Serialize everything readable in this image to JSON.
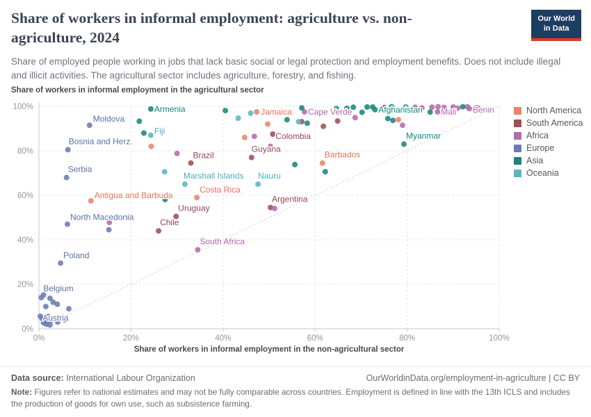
{
  "header": {
    "title": "Share of workers in informal employment: agriculture vs. non-agriculture, 2024",
    "subtitle": "Share of employed people working in jobs that lack basic social or legal protection and employment benefits. Does not include illegal and illicit activities. The agricultural sector includes agriculture, forestry, and fishing.",
    "logo_line1": "Our World",
    "logo_line2": "in Data",
    "logo_bg": "#1d3d63",
    "logo_accent": "#dc3d22"
  },
  "chart_data": {
    "type": "scatter",
    "ylabel": "Share of workers in informal employment in the agricultural sector",
    "xlabel": "Share of workers in informal employment in the non-agricultural sector",
    "xlim": [
      0,
      100
    ],
    "ylim": [
      0,
      100
    ],
    "xticks": [
      0,
      20,
      40,
      60,
      80,
      100
    ],
    "yticks": [
      0,
      20,
      40,
      60,
      80,
      100
    ],
    "tick_suffix": "%",
    "grid": true,
    "diagonal_reference_line": true,
    "legend_position": "right",
    "series": [
      {
        "name": "North America",
        "color": "#EE8268",
        "label_color": "#E8705C",
        "points": [
          {
            "x": 47.3,
            "y": 97.5,
            "l": "Jamaica",
            "dx": 6,
            "dy": 4
          },
          {
            "x": 49.7,
            "y": 92
          },
          {
            "x": 44.7,
            "y": 86
          },
          {
            "x": 24.4,
            "y": 82
          },
          {
            "x": 78.1,
            "y": 94
          },
          {
            "x": 61.6,
            "y": 74.5,
            "l": "Barbados",
            "dx": 3,
            "dy": -8
          },
          {
            "x": 34.3,
            "y": 59,
            "l": "Costa Rica",
            "dx": 4,
            "dy": -7
          },
          {
            "x": 11.3,
            "y": 57.5,
            "l": "Antigua and Barbuda",
            "dx": 5,
            "dy": -4
          }
        ]
      },
      {
        "name": "South America",
        "color": "#9D4E56",
        "label_color": "#96464F",
        "points": [
          {
            "x": 50.8,
            "y": 87.5,
            "l": "Colombia",
            "dx": 4,
            "dy": 7
          },
          {
            "x": 46.2,
            "y": 77,
            "l": "Guyana",
            "dx": 0,
            "dy": -8
          },
          {
            "x": 33,
            "y": 74.5,
            "l": "Brazil",
            "dx": 3,
            "dy": -7
          },
          {
            "x": 29.8,
            "y": 50.5,
            "l": "Uruguay",
            "dx": 3,
            "dy": -8
          },
          {
            "x": 26,
            "y": 44,
            "l": "Chile",
            "dx": 2,
            "dy": -8
          },
          {
            "x": 50.3,
            "y": 54.5,
            "l": "Argentina",
            "dx": 2,
            "dy": -8
          },
          {
            "x": 57.1,
            "y": 93.1
          },
          {
            "x": 61.8,
            "y": 91
          },
          {
            "x": 64.9,
            "y": 93.4
          },
          {
            "x": 75.1,
            "y": 99.5
          }
        ]
      },
      {
        "name": "Africa",
        "color": "#B36BAD",
        "label_color": "#B066AB",
        "points": [
          {
            "x": 57.7,
            "y": 97.5,
            "l": "Cape Verde",
            "dx": 5,
            "dy": 4
          },
          {
            "x": 86.6,
            "y": 97.5,
            "l": "Mali",
            "dx": 5,
            "dy": 4
          },
          {
            "x": 93.5,
            "y": 99,
            "l": "Benin",
            "dx": 5,
            "dy": 6
          },
          {
            "x": 34.5,
            "y": 35.5,
            "l": "South Africa",
            "dx": 3,
            "dy": -8
          },
          {
            "x": 30,
            "y": 78.8
          },
          {
            "x": 46.8,
            "y": 86.5
          },
          {
            "x": 50.3,
            "y": 82
          },
          {
            "x": 68.7,
            "y": 94.9
          },
          {
            "x": 79,
            "y": 91.5
          },
          {
            "x": 51.2,
            "y": 54.1
          },
          {
            "x": 15.3,
            "y": 47.8
          },
          {
            "x": 81.7,
            "y": 99.6
          },
          {
            "x": 83.2,
            "y": 99.3
          },
          {
            "x": 85.4,
            "y": 99.6
          },
          {
            "x": 86.7,
            "y": 99.8
          },
          {
            "x": 88,
            "y": 99.5
          },
          {
            "x": 90,
            "y": 99.7
          },
          {
            "x": 91,
            "y": 99.2
          },
          {
            "x": 93.1,
            "y": 99.8
          },
          {
            "x": 94.9,
            "y": 99.4
          },
          {
            "x": 95.4,
            "y": 99.2
          }
        ]
      },
      {
        "name": "Europe",
        "color": "#6B7CB4",
        "label_color": "#5872A8",
        "points": [
          {
            "x": 11,
            "y": 91.5,
            "l": "Moldova",
            "dx": 5,
            "dy": -5
          },
          {
            "x": 6.3,
            "y": 80.5,
            "l": "Bosnia and Herz.",
            "dx": 1,
            "dy": -8
          },
          {
            "x": 6,
            "y": 68,
            "l": "Serbia",
            "dx": 2,
            "dy": -8
          },
          {
            "x": 6.2,
            "y": 47,
            "l": "North Macedonia",
            "dx": 4,
            "dy": -6
          },
          {
            "x": 4.7,
            "y": 29.5,
            "l": "Poland",
            "dx": 4,
            "dy": -7
          },
          {
            "x": 0.5,
            "y": 14,
            "l": "Belgium",
            "dx": 3,
            "dy": -9
          },
          {
            "x": 2,
            "y": 5.5,
            "l": "Austria",
            "dx": -8,
            "dy": 6
          },
          {
            "x": 15.2,
            "y": 44.5
          },
          {
            "x": 1,
            "y": 15.2
          },
          {
            "x": 2.4,
            "y": 13.7
          },
          {
            "x": 3.1,
            "y": 11.9
          },
          {
            "x": 4,
            "y": 11
          },
          {
            "x": 1.5,
            "y": 10
          },
          {
            "x": 0.3,
            "y": 5.6
          },
          {
            "x": 0.7,
            "y": 4.6
          },
          {
            "x": 1.2,
            "y": 4
          },
          {
            "x": 1.9,
            "y": 3.5
          },
          {
            "x": 2.6,
            "y": 3.8
          },
          {
            "x": 3.4,
            "y": 4.4
          },
          {
            "x": 1,
            "y": 2.7
          },
          {
            "x": 1.6,
            "y": 2
          },
          {
            "x": 2.4,
            "y": 1.7
          },
          {
            "x": 4.1,
            "y": 3
          },
          {
            "x": 5.6,
            "y": 4
          },
          {
            "x": 6.5,
            "y": 9
          }
        ]
      },
      {
        "name": "Asia",
        "color": "#18877D",
        "label_color": "#11867C",
        "points": [
          {
            "x": 24.3,
            "y": 98.8,
            "l": "Armenia",
            "dx": 5,
            "dy": 4
          },
          {
            "x": 73,
            "y": 98.5,
            "l": "Afghanistan",
            "dx": 5,
            "dy": 4
          },
          {
            "x": 79.3,
            "y": 83,
            "l": "Myanmar",
            "dx": 3,
            "dy": -8
          },
          {
            "x": 21.8,
            "y": 93.3
          },
          {
            "x": 22.8,
            "y": 88
          },
          {
            "x": 40.5,
            "y": 98.1
          },
          {
            "x": 53.9,
            "y": 94
          },
          {
            "x": 57.1,
            "y": 99.3
          },
          {
            "x": 58.3,
            "y": 92.4
          },
          {
            "x": 62.2,
            "y": 70.6
          },
          {
            "x": 55.6,
            "y": 73.8
          },
          {
            "x": 27.4,
            "y": 58.1
          },
          {
            "x": 64.6,
            "y": 99
          },
          {
            "x": 66.9,
            "y": 99.1
          },
          {
            "x": 68.3,
            "y": 99.6
          },
          {
            "x": 70.2,
            "y": 97.3
          },
          {
            "x": 71.3,
            "y": 99.7
          },
          {
            "x": 72.5,
            "y": 99.7
          },
          {
            "x": 75.8,
            "y": 94.5
          },
          {
            "x": 76.9,
            "y": 93.7
          },
          {
            "x": 76.6,
            "y": 99.8
          },
          {
            "x": 79.7,
            "y": 99.7
          },
          {
            "x": 85,
            "y": 97.4
          },
          {
            "x": 92.1,
            "y": 99.8
          }
        ]
      },
      {
        "name": "Oceania",
        "color": "#5BB6C2",
        "label_color": "#4AAEBD",
        "points": [
          {
            "x": 24.3,
            "y": 87,
            "l": "Fiji",
            "dx": 5,
            "dy": -2
          },
          {
            "x": 31.7,
            "y": 65,
            "l": "Marshall Islands",
            "dx": -2,
            "dy": -8
          },
          {
            "x": 47.6,
            "y": 65,
            "l": "Nauru",
            "dx": 0,
            "dy": -8
          },
          {
            "x": 27.3,
            "y": 70.6
          },
          {
            "x": 43.3,
            "y": 94.7
          },
          {
            "x": 46,
            "y": 96.9
          },
          {
            "x": 56.4,
            "y": 93.1
          }
        ]
      }
    ]
  },
  "footer": {
    "datasource_label": "Data source:",
    "datasource_value": "International Labour Organization",
    "url": "OurWorldinData.org/employment-in-agriculture",
    "separator": "|",
    "license": "CC BY",
    "note_label": "Note:",
    "note_text": "Figures refer to national estimates and may not be fully comparable across countries. Employment is defined in line with the 13th ICLS and includes the production of goods for own use, such as subsistence farming."
  }
}
